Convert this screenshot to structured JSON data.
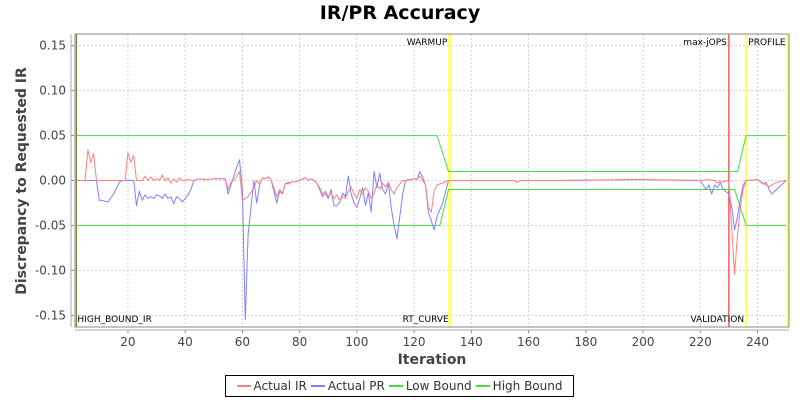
{
  "chart_data": {
    "type": "line",
    "title": "IR/PR Accuracy",
    "xlabel": "Iteration",
    "ylabel": "Discrepancy to Requested IR",
    "xlim": [
      1.5,
      251
    ],
    "ylim": [
      -0.163,
      0.163
    ],
    "x_ticks": [
      20,
      40,
      60,
      80,
      100,
      120,
      140,
      160,
      180,
      200,
      220,
      240
    ],
    "y_ticks": [
      0.15,
      0.1,
      0.05,
      0.0,
      -0.05,
      -0.1,
      -0.15
    ],
    "y_tick_labels": [
      "0.15",
      "0.10",
      "0.05",
      "0.00",
      "-0.05",
      "-0.10",
      "-0.15"
    ],
    "grid": true,
    "legend_position": "bottom",
    "series": [
      {
        "name": "Actual IR",
        "color": "#ff8080",
        "points": [
          [
            2,
            0
          ],
          [
            5,
            0
          ],
          [
            6,
            0.034
          ],
          [
            7,
            0.02
          ],
          [
            8,
            0.03
          ],
          [
            9,
            0
          ],
          [
            19,
            0
          ],
          [
            20,
            0.031
          ],
          [
            21,
            0.02
          ],
          [
            22,
            0.028
          ],
          [
            23,
            0
          ],
          [
            25,
            0
          ],
          [
            26,
            0.005
          ],
          [
            27,
            0
          ],
          [
            28,
            0.004
          ],
          [
            29,
            0
          ],
          [
            30,
            0.002
          ],
          [
            31,
            0
          ],
          [
            32,
            0.006
          ],
          [
            33,
            0
          ],
          [
            34,
            0.003
          ],
          [
            35,
            -0.003
          ],
          [
            36,
            0.002
          ],
          [
            37,
            -0.002
          ],
          [
            38,
            0.003
          ],
          [
            39,
            0
          ],
          [
            40,
            0
          ],
          [
            41,
            0.001
          ],
          [
            43,
            0
          ],
          [
            45,
            0.002
          ],
          [
            47,
            0.001
          ],
          [
            50,
            0.002
          ],
          [
            53,
            0.002
          ],
          [
            54,
            0.002
          ],
          [
            55,
            -0.01
          ],
          [
            56,
            -0.002
          ],
          [
            57,
            0
          ],
          [
            58,
            0.005
          ],
          [
            59,
            0.01
          ],
          [
            60,
            -0.022
          ],
          [
            62,
            -0.018
          ],
          [
            64,
            -0.008
          ],
          [
            65,
            0
          ],
          [
            66,
            -0.004
          ],
          [
            67,
            0.003
          ],
          [
            68,
            0.002
          ],
          [
            69,
            0.004
          ],
          [
            70,
            0.001
          ],
          [
            72,
            -0.018
          ],
          [
            73,
            -0.01
          ],
          [
            74,
            -0.014
          ],
          [
            75,
            -0.003
          ],
          [
            76,
            -0.004
          ],
          [
            77,
            -0.002
          ],
          [
            79,
            -0.001
          ],
          [
            80,
            0
          ],
          [
            81,
            0.002
          ],
          [
            82,
            0.003
          ],
          [
            83,
            0
          ],
          [
            84,
            0.002
          ],
          [
            85,
            0
          ],
          [
            86,
            -0.003
          ],
          [
            87,
            -0.008
          ],
          [
            88,
            -0.015
          ],
          [
            89,
            -0.012
          ],
          [
            90,
            -0.018
          ],
          [
            91,
            -0.014
          ],
          [
            92,
            -0.02
          ],
          [
            93,
            -0.016
          ],
          [
            94,
            -0.022
          ],
          [
            95,
            -0.018
          ],
          [
            96,
            -0.02
          ],
          [
            97,
            -0.012
          ],
          [
            98,
            -0.007
          ],
          [
            99,
            -0.015
          ],
          [
            100,
            -0.02
          ],
          [
            101,
            -0.01
          ],
          [
            102,
            -0.015
          ],
          [
            103,
            -0.008
          ],
          [
            104,
            -0.012
          ],
          [
            105,
            -0.02
          ],
          [
            106,
            -0.014
          ],
          [
            107,
            -0.005
          ],
          [
            108,
            -0.01
          ],
          [
            109,
            -0.003
          ],
          [
            110,
            -0.007
          ],
          [
            111,
            -0.002
          ],
          [
            112,
            -0.01
          ],
          [
            113,
            -0.015
          ],
          [
            114,
            -0.008
          ],
          [
            115,
            -0.004
          ],
          [
            116,
            0
          ],
          [
            118,
            0
          ],
          [
            120,
            0.002
          ],
          [
            121,
            0.001
          ],
          [
            122,
            0.005
          ],
          [
            123,
            0
          ],
          [
            124,
            -0.005
          ],
          [
            125,
            -0.03
          ],
          [
            126,
            -0.035
          ],
          [
            127,
            -0.012
          ],
          [
            128,
            -0.005
          ],
          [
            132,
            0
          ],
          [
            150,
            0
          ],
          [
            155,
            0
          ],
          [
            156,
            -0.002
          ],
          [
            157,
            0
          ],
          [
            170,
            0
          ],
          [
            200,
            0.001
          ],
          [
            220,
            0
          ],
          [
            223,
            0.001
          ],
          [
            225,
            0
          ],
          [
            226,
            -0.003
          ],
          [
            227,
            0
          ],
          [
            228,
            -0.002
          ],
          [
            229,
            0
          ],
          [
            230,
            -0.001
          ],
          [
            232,
            -0.105
          ],
          [
            233,
            -0.06
          ],
          [
            234,
            -0.03
          ],
          [
            235,
            -0.01
          ],
          [
            236,
            0
          ],
          [
            240,
            0.001
          ],
          [
            242,
            -0.003
          ],
          [
            244,
            -0.007
          ],
          [
            246,
            -0.003
          ],
          [
            248,
            -0.001
          ],
          [
            250,
            0
          ]
        ]
      },
      {
        "name": "Actual PR",
        "color": "#8080ff",
        "points": [
          [
            2,
            0
          ],
          [
            9,
            0
          ],
          [
            10,
            -0.022
          ],
          [
            11,
            -0.022
          ],
          [
            13,
            -0.024
          ],
          [
            15,
            -0.015
          ],
          [
            17,
            -0.002
          ],
          [
            18,
            0
          ],
          [
            20,
            0
          ],
          [
            22,
            0
          ],
          [
            23,
            -0.028
          ],
          [
            24,
            -0.012
          ],
          [
            25,
            -0.022
          ],
          [
            26,
            -0.016
          ],
          [
            27,
            -0.02
          ],
          [
            28,
            -0.018
          ],
          [
            29,
            -0.02
          ],
          [
            30,
            -0.016
          ],
          [
            31,
            -0.017
          ],
          [
            32,
            -0.02
          ],
          [
            33,
            -0.015
          ],
          [
            34,
            -0.02
          ],
          [
            35,
            -0.018
          ],
          [
            36,
            -0.026
          ],
          [
            37,
            -0.018
          ],
          [
            38,
            -0.02
          ],
          [
            39,
            -0.024
          ],
          [
            40,
            -0.02
          ],
          [
            41,
            -0.016
          ],
          [
            42,
            -0.01
          ],
          [
            43,
            0
          ],
          [
            45,
            0.002
          ],
          [
            47,
            0.001
          ],
          [
            50,
            0.002
          ],
          [
            53,
            0.002
          ],
          [
            54,
            0.002
          ],
          [
            55,
            -0.015
          ],
          [
            56,
            -0.005
          ],
          [
            57,
            0.005
          ],
          [
            58,
            0.015
          ],
          [
            59,
            0.023
          ],
          [
            60,
            -0.01
          ],
          [
            61,
            -0.155
          ],
          [
            62,
            -0.06
          ],
          [
            64,
            0
          ],
          [
            65,
            -0.025
          ],
          [
            66,
            -0.005
          ],
          [
            67,
            0.003
          ],
          [
            68,
            0.002
          ],
          [
            69,
            0.004
          ],
          [
            70,
            0.001
          ],
          [
            72,
            -0.025
          ],
          [
            73,
            -0.012
          ],
          [
            74,
            -0.015
          ],
          [
            75,
            -0.003
          ],
          [
            77,
            -0.002
          ],
          [
            79,
            -0.001
          ],
          [
            80,
            0
          ],
          [
            82,
            0.003
          ],
          [
            83,
            0
          ],
          [
            84,
            0.002
          ],
          [
            85,
            0
          ],
          [
            86,
            -0.003
          ],
          [
            87,
            -0.01
          ],
          [
            88,
            -0.018
          ],
          [
            89,
            -0.014
          ],
          [
            90,
            -0.02
          ],
          [
            91,
            -0.01
          ],
          [
            92,
            -0.028
          ],
          [
            93,
            -0.028
          ],
          [
            94,
            -0.024
          ],
          [
            95,
            -0.014
          ],
          [
            96,
            -0.018
          ],
          [
            97,
            0.005
          ],
          [
            98,
            -0.015
          ],
          [
            99,
            -0.025
          ],
          [
            100,
            -0.03
          ],
          [
            101,
            -0.02
          ],
          [
            102,
            -0.008
          ],
          [
            103,
            -0.028
          ],
          [
            104,
            -0.014
          ],
          [
            105,
            -0.035
          ],
          [
            106,
            0.01
          ],
          [
            107,
            -0.008
          ],
          [
            108,
            0.008
          ],
          [
            109,
            -0.01
          ],
          [
            110,
            -0.015
          ],
          [
            111,
            -0.003
          ],
          [
            112,
            -0.03
          ],
          [
            113,
            -0.05
          ],
          [
            114,
            -0.065
          ],
          [
            115,
            -0.04
          ],
          [
            116,
            -0.015
          ],
          [
            117,
            0
          ],
          [
            120,
            0.002
          ],
          [
            121,
            0.001
          ],
          [
            122,
            0.01
          ],
          [
            123,
            0.004
          ],
          [
            124,
            -0.006
          ],
          [
            125,
            -0.035
          ],
          [
            126,
            -0.045
          ],
          [
            127,
            -0.055
          ],
          [
            128,
            -0.04
          ],
          [
            130,
            -0.025
          ],
          [
            132,
            0
          ],
          [
            150,
            0
          ],
          [
            155,
            0
          ],
          [
            156,
            -0.002
          ],
          [
            157,
            0
          ],
          [
            170,
            0
          ],
          [
            200,
            0.001
          ],
          [
            220,
            0
          ],
          [
            222,
            -0.01
          ],
          [
            223,
            -0.005
          ],
          [
            224,
            -0.015
          ],
          [
            225,
            -0.005
          ],
          [
            226,
            -0.008
          ],
          [
            227,
            -0.002
          ],
          [
            228,
            -0.01
          ],
          [
            230,
            -0.015
          ],
          [
            231,
            -0.03
          ],
          [
            232,
            -0.055
          ],
          [
            233,
            -0.04
          ],
          [
            234,
            -0.02
          ],
          [
            235,
            -0.005
          ],
          [
            236,
            0
          ],
          [
            240,
            0.001
          ],
          [
            242,
            -0.004
          ],
          [
            243,
            -0.002
          ],
          [
            244,
            -0.01
          ],
          [
            245,
            -0.015
          ],
          [
            246,
            -0.012
          ],
          [
            248,
            -0.006
          ],
          [
            250,
            0
          ]
        ]
      },
      {
        "name": "Low Bound",
        "color": "#40e040",
        "points": [
          [
            2,
            -0.05
          ],
          [
            129,
            -0.05
          ],
          [
            132,
            -0.01
          ],
          [
            230,
            -0.01
          ],
          [
            232,
            -0.01
          ],
          [
            236,
            -0.05
          ],
          [
            250,
            -0.05
          ]
        ]
      },
      {
        "name": "High Bound",
        "color": "#40e040",
        "points": [
          [
            2,
            0.05
          ],
          [
            128,
            0.05
          ],
          [
            132,
            0.01
          ],
          [
            231,
            0.01
          ],
          [
            233,
            0.01
          ],
          [
            236,
            0.05
          ],
          [
            250,
            0.05
          ]
        ]
      }
    ],
    "vertical_markers": [
      {
        "x": 2,
        "label": "HIGH_BOUND_IR",
        "color": "#808040",
        "label_position": "bottom-right"
      },
      {
        "x": 132.3,
        "label": "WARMUP",
        "color": "#ffff66",
        "label_position": "top-left"
      },
      {
        "x": 132.8,
        "label": "RT_CURVE",
        "color": "#ffff66",
        "label_position": "bottom-left"
      },
      {
        "x": 230,
        "label": "max-jOPS",
        "color": "#ff3030",
        "label_position": "top-left"
      },
      {
        "x": 236,
        "label": "VALIDATION",
        "color": "#ffff66",
        "label_position": "bottom-left"
      },
      {
        "x": 250.5,
        "label": "PROFILE",
        "color": "#ffff66",
        "label_position": "top-left"
      }
    ]
  },
  "legend": {
    "items": [
      {
        "label": "Actual IR",
        "color": "#ff8080"
      },
      {
        "label": "Actual PR",
        "color": "#8080ff"
      },
      {
        "label": "Low Bound",
        "color": "#40e040"
      },
      {
        "label": "High Bound",
        "color": "#40e040"
      }
    ]
  }
}
